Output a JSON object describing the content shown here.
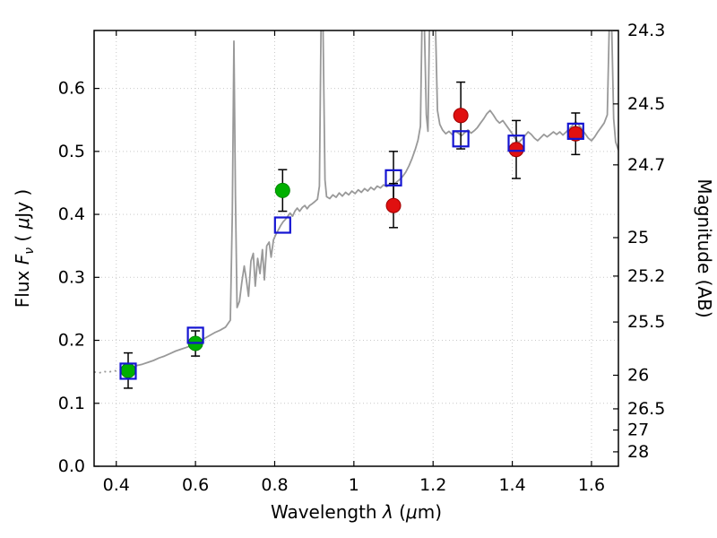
{
  "chart_data": {
    "type": "line+scatter",
    "description": "Galaxy spectral energy distribution: observed gray spectrum with broadband photometry points",
    "xlabel_parts": [
      {
        "t": "Wavelength  ",
        "i": 0
      },
      {
        "t": "λ",
        "i": 1
      },
      {
        "t": " (",
        "i": 0
      },
      {
        "t": "μ",
        "i": 1
      },
      {
        "t": "m)",
        "i": 0
      }
    ],
    "ylabel_left_parts": [
      {
        "t": "Flux  ",
        "i": 0
      },
      {
        "t": "F",
        "i": 1
      },
      {
        "t": "ν",
        "i": 1,
        "sub": 1
      },
      {
        "t": "  ( ",
        "i": 0
      },
      {
        "t": "μ",
        "i": 1
      },
      {
        "t": "Jy )",
        "i": 0
      }
    ],
    "ylabel_right_parts": [
      {
        "t": "Magnitude (AB)",
        "i": 0
      }
    ],
    "xlim": [
      0.344,
      1.668
    ],
    "ylim": [
      0.0,
      0.692
    ],
    "x_ticks": [
      {
        "v": 0.4,
        "label": "0.4"
      },
      {
        "v": 0.6,
        "label": "0.6"
      },
      {
        "v": 0.8,
        "label": "0.8"
      },
      {
        "v": 1.0,
        "label": "1"
      },
      {
        "v": 1.2,
        "label": "1.2"
      },
      {
        "v": 1.4,
        "label": "1.4"
      },
      {
        "v": 1.6,
        "label": "1.6"
      }
    ],
    "y_ticks_left": [
      {
        "v": 0.0,
        "label": "0.0"
      },
      {
        "v": 0.1,
        "label": "0.1"
      },
      {
        "v": 0.2,
        "label": "0.2"
      },
      {
        "v": 0.3,
        "label": "0.3"
      },
      {
        "v": 0.4,
        "label": "0.4"
      },
      {
        "v": 0.5,
        "label": "0.5"
      },
      {
        "v": 0.6,
        "label": "0.6"
      }
    ],
    "mag_zeropoint_ujy": 23.9,
    "y_ticks_right": [
      {
        "mag": 24.3,
        "label": "24.3"
      },
      {
        "mag": 24.5,
        "label": "24.5"
      },
      {
        "mag": 24.7,
        "label": "24.7"
      },
      {
        "mag": 25.0,
        "label": "25"
      },
      {
        "mag": 25.2,
        "label": "25.2"
      },
      {
        "mag": 25.5,
        "label": "25.5"
      },
      {
        "mag": 26.0,
        "label": "26"
      },
      {
        "mag": 26.5,
        "label": "26.5"
      },
      {
        "mag": 27.0,
        "label": "27"
      },
      {
        "mag": 28.0,
        "label": "28"
      }
    ],
    "grid": {
      "show": true,
      "style": "dotted",
      "color": "#c9c9c9"
    },
    "frame_color": "#000000",
    "spectrum": {
      "name": "observed-spectrum",
      "color": "#999999",
      "dotted_points": [
        [
          0.344,
          0.15
        ],
        [
          0.356,
          0.148
        ],
        [
          0.368,
          0.151
        ],
        [
          0.38,
          0.149
        ],
        [
          0.392,
          0.152
        ],
        [
          0.404,
          0.151
        ],
        [
          0.416,
          0.154
        ],
        [
          0.424,
          0.156
        ]
      ],
      "points": [
        [
          0.424,
          0.156
        ],
        [
          0.438,
          0.157
        ],
        [
          0.452,
          0.16
        ],
        [
          0.466,
          0.162
        ],
        [
          0.48,
          0.165
        ],
        [
          0.494,
          0.168
        ],
        [
          0.508,
          0.172
        ],
        [
          0.522,
          0.175
        ],
        [
          0.536,
          0.179
        ],
        [
          0.55,
          0.183
        ],
        [
          0.564,
          0.186
        ],
        [
          0.578,
          0.189
        ],
        [
          0.592,
          0.193
        ],
        [
          0.606,
          0.197
        ],
        [
          0.62,
          0.202
        ],
        [
          0.634,
          0.207
        ],
        [
          0.648,
          0.212
        ],
        [
          0.662,
          0.216
        ],
        [
          0.676,
          0.221
        ],
        [
          0.688,
          0.232
        ],
        [
          0.693,
          0.4
        ],
        [
          0.697,
          0.675
        ],
        [
          0.701,
          0.43
        ],
        [
          0.705,
          0.252
        ],
        [
          0.711,
          0.262
        ],
        [
          0.717,
          0.292
        ],
        [
          0.723,
          0.318
        ],
        [
          0.728,
          0.298
        ],
        [
          0.734,
          0.27
        ],
        [
          0.74,
          0.326
        ],
        [
          0.746,
          0.338
        ],
        [
          0.751,
          0.286
        ],
        [
          0.757,
          0.33
        ],
        [
          0.763,
          0.306
        ],
        [
          0.769,
          0.344
        ],
        [
          0.774,
          0.296
        ],
        [
          0.78,
          0.35
        ],
        [
          0.786,
          0.356
        ],
        [
          0.791,
          0.332
        ],
        [
          0.797,
          0.36
        ],
        [
          0.803,
          0.368
        ],
        [
          0.809,
          0.375
        ],
        [
          0.815,
          0.382
        ],
        [
          0.821,
          0.388
        ],
        [
          0.827,
          0.392
        ],
        [
          0.833,
          0.397
        ],
        [
          0.839,
          0.402
        ],
        [
          0.845,
          0.397
        ],
        [
          0.851,
          0.405
        ],
        [
          0.857,
          0.41
        ],
        [
          0.863,
          0.405
        ],
        [
          0.87,
          0.411
        ],
        [
          0.876,
          0.414
        ],
        [
          0.882,
          0.409
        ],
        [
          0.888,
          0.414
        ],
        [
          0.895,
          0.417
        ],
        [
          0.901,
          0.42
        ],
        [
          0.908,
          0.424
        ],
        [
          0.913,
          0.445
        ],
        [
          0.917,
          0.7
        ],
        [
          0.922,
          0.7
        ],
        [
          0.927,
          0.455
        ],
        [
          0.931,
          0.428
        ],
        [
          0.939,
          0.425
        ],
        [
          0.947,
          0.431
        ],
        [
          0.955,
          0.427
        ],
        [
          0.963,
          0.434
        ],
        [
          0.971,
          0.429
        ],
        [
          0.979,
          0.435
        ],
        [
          0.987,
          0.431
        ],
        [
          0.995,
          0.437
        ],
        [
          1.003,
          0.433
        ],
        [
          1.011,
          0.439
        ],
        [
          1.019,
          0.435
        ],
        [
          1.027,
          0.441
        ],
        [
          1.035,
          0.437
        ],
        [
          1.043,
          0.443
        ],
        [
          1.051,
          0.439
        ],
        [
          1.059,
          0.445
        ],
        [
          1.067,
          0.442
        ],
        [
          1.075,
          0.447
        ],
        [
          1.083,
          0.444
        ],
        [
          1.091,
          0.449
        ],
        [
          1.099,
          0.446
        ],
        [
          1.107,
          0.451
        ],
        [
          1.115,
          0.455
        ],
        [
          1.123,
          0.46
        ],
        [
          1.131,
          0.467
        ],
        [
          1.139,
          0.477
        ],
        [
          1.147,
          0.489
        ],
        [
          1.155,
          0.503
        ],
        [
          1.162,
          0.518
        ],
        [
          1.168,
          0.54
        ],
        [
          1.172,
          0.7
        ],
        [
          1.178,
          0.7
        ],
        [
          1.183,
          0.558
        ],
        [
          1.187,
          0.532
        ],
        [
          1.191,
          0.7
        ],
        [
          1.2,
          0.7
        ],
        [
          1.206,
          0.7
        ],
        [
          1.211,
          0.565
        ],
        [
          1.217,
          0.543
        ],
        [
          1.224,
          0.534
        ],
        [
          1.232,
          0.528
        ],
        [
          1.24,
          0.532
        ],
        [
          1.248,
          0.527
        ],
        [
          1.256,
          0.532
        ],
        [
          1.264,
          0.529
        ],
        [
          1.272,
          0.525
        ],
        [
          1.28,
          0.53
        ],
        [
          1.288,
          0.534
        ],
        [
          1.296,
          0.529
        ],
        [
          1.304,
          0.533
        ],
        [
          1.312,
          0.538
        ],
        [
          1.32,
          0.545
        ],
        [
          1.328,
          0.552
        ],
        [
          1.336,
          0.56
        ],
        [
          1.344,
          0.565
        ],
        [
          1.352,
          0.558
        ],
        [
          1.36,
          0.55
        ],
        [
          1.368,
          0.545
        ],
        [
          1.376,
          0.549
        ],
        [
          1.384,
          0.542
        ],
        [
          1.392,
          0.535
        ],
        [
          1.4,
          0.528
        ],
        [
          1.408,
          0.52
        ],
        [
          1.416,
          0.514
        ],
        [
          1.424,
          0.519
        ],
        [
          1.432,
          0.525
        ],
        [
          1.44,
          0.531
        ],
        [
          1.448,
          0.527
        ],
        [
          1.456,
          0.521
        ],
        [
          1.464,
          0.517
        ],
        [
          1.472,
          0.522
        ],
        [
          1.48,
          0.527
        ],
        [
          1.488,
          0.523
        ],
        [
          1.496,
          0.527
        ],
        [
          1.504,
          0.531
        ],
        [
          1.512,
          0.527
        ],
        [
          1.52,
          0.531
        ],
        [
          1.528,
          0.526
        ],
        [
          1.536,
          0.531
        ],
        [
          1.544,
          0.536
        ],
        [
          1.552,
          0.541
        ],
        [
          1.56,
          0.547
        ],
        [
          1.568,
          0.542
        ],
        [
          1.576,
          0.535
        ],
        [
          1.584,
          0.528
        ],
        [
          1.592,
          0.521
        ],
        [
          1.6,
          0.517
        ],
        [
          1.608,
          0.523
        ],
        [
          1.616,
          0.531
        ],
        [
          1.624,
          0.538
        ],
        [
          1.632,
          0.545
        ],
        [
          1.64,
          0.558
        ],
        [
          1.645,
          0.7
        ],
        [
          1.651,
          0.7
        ],
        [
          1.656,
          0.552
        ],
        [
          1.661,
          0.515
        ],
        [
          1.668,
          0.502
        ]
      ]
    },
    "series": [
      {
        "name": "green-photometry",
        "marker": "circle",
        "color": "#00b000",
        "edge": "#008800",
        "points": [
          {
            "x": 0.43,
            "y": 0.152,
            "yerr": 0.028
          },
          {
            "x": 0.6,
            "y": 0.195,
            "yerr": 0.02
          },
          {
            "x": 0.82,
            "y": 0.438,
            "yerr": 0.033
          }
        ]
      },
      {
        "name": "red-photometry",
        "marker": "circle",
        "color": "#e01010",
        "edge": "#a00000",
        "points": [
          {
            "x": 1.1,
            "y": 0.414,
            "yerr": 0.035
          },
          {
            "x": 1.27,
            "y": 0.557,
            "yerr": 0.053
          },
          {
            "x": 1.41,
            "y": 0.503,
            "yerr": 0.046
          },
          {
            "x": 1.56,
            "y": 0.528,
            "yerr": 0.033
          }
        ]
      },
      {
        "name": "model-photometry-squares",
        "marker": "square",
        "color": "#1414d2",
        "points": [
          {
            "x": 0.43,
            "y": 0.151
          },
          {
            "x": 0.6,
            "y": 0.208
          },
          {
            "x": 0.82,
            "y": 0.383
          },
          {
            "x": 1.1,
            "y": 0.458,
            "yerr": 0.042
          },
          {
            "x": 1.27,
            "y": 0.52
          },
          {
            "x": 1.41,
            "y": 0.513
          },
          {
            "x": 1.56,
            "y": 0.532
          }
        ]
      }
    ]
  }
}
